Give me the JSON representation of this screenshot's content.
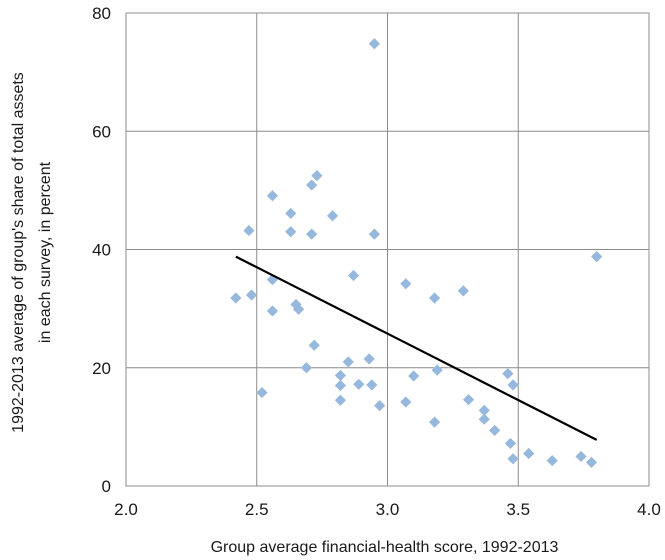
{
  "chart_data": {
    "type": "scatter",
    "xlabel": "Group average financial-health score, 1992-2013",
    "ylabel_line1": "1992-2013 average of group's share of total assets",
    "ylabel_line2": "in each survey, in percent",
    "xlim": [
      2.0,
      4.0
    ],
    "ylim": [
      0,
      80
    ],
    "x_ticks": [
      2.0,
      2.5,
      3.0,
      3.5,
      4.0
    ],
    "x_tick_labels": [
      "2.0",
      "2.5",
      "3.0",
      "3.5",
      "4.0"
    ],
    "y_ticks": [
      0,
      20,
      40,
      60,
      80
    ],
    "y_tick_labels": [
      "0",
      "20",
      "40",
      "60",
      "80"
    ],
    "grid": true,
    "series": [
      {
        "marker": "diamond",
        "color": "#95b8dc",
        "points": [
          [
            2.42,
            31.8
          ],
          [
            2.47,
            43.2
          ],
          [
            2.48,
            32.3
          ],
          [
            2.52,
            15.8
          ],
          [
            2.56,
            49.1
          ],
          [
            2.56,
            34.9
          ],
          [
            2.56,
            29.6
          ],
          [
            2.63,
            46.1
          ],
          [
            2.63,
            43.0
          ],
          [
            2.65,
            30.7
          ],
          [
            2.66,
            29.9
          ],
          [
            2.69,
            20.0
          ],
          [
            2.71,
            50.9
          ],
          [
            2.71,
            42.6
          ],
          [
            2.72,
            23.8
          ],
          [
            2.73,
            52.5
          ],
          [
            2.79,
            45.7
          ],
          [
            2.82,
            18.7
          ],
          [
            2.82,
            17.0
          ],
          [
            2.82,
            14.5
          ],
          [
            2.85,
            21.0
          ],
          [
            2.87,
            35.6
          ],
          [
            2.89,
            17.2
          ],
          [
            2.93,
            21.5
          ],
          [
            2.94,
            17.1
          ],
          [
            2.95,
            74.8
          ],
          [
            2.95,
            42.6
          ],
          [
            2.97,
            13.6
          ],
          [
            3.07,
            34.2
          ],
          [
            3.07,
            14.2
          ],
          [
            3.1,
            18.6
          ],
          [
            3.18,
            31.8
          ],
          [
            3.18,
            10.8
          ],
          [
            3.19,
            19.6
          ],
          [
            3.29,
            33.0
          ],
          [
            3.31,
            14.6
          ],
          [
            3.37,
            12.8
          ],
          [
            3.37,
            11.3
          ],
          [
            3.41,
            9.4
          ],
          [
            3.46,
            19.0
          ],
          [
            3.47,
            7.2
          ],
          [
            3.48,
            17.1
          ],
          [
            3.48,
            4.6
          ],
          [
            3.54,
            5.5
          ],
          [
            3.63,
            4.3
          ],
          [
            3.74,
            5.0
          ],
          [
            3.78,
            4.0
          ],
          [
            3.8,
            38.8
          ]
        ]
      }
    ],
    "trendline": {
      "color": "#000000",
      "from": [
        2.42,
        38.8
      ],
      "to": [
        3.8,
        7.8
      ]
    }
  }
}
